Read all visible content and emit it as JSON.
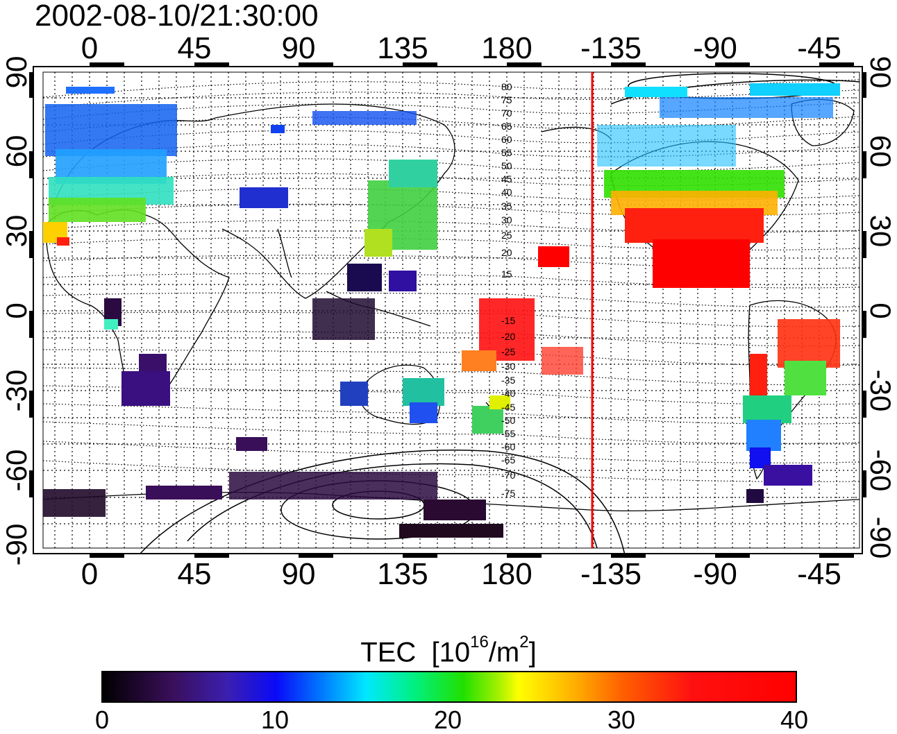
{
  "timestamp": "2002-08-10/21:30:00",
  "longitude_labels": [
    "0",
    "45",
    "90",
    "135",
    "180",
    "-135",
    "-90",
    "-45"
  ],
  "latitude_labels": [
    "90",
    "60",
    "30",
    "0",
    "-30",
    "-60",
    "-90"
  ],
  "contour_labels": [
    "80",
    "75",
    "70",
    "65",
    "60",
    "55",
    "50",
    "45",
    "40",
    "35",
    "30",
    "25",
    "20",
    "15",
    "-15",
    "-20",
    "-25",
    "-30",
    "-35",
    "-40",
    "-45",
    "-50",
    "-55",
    "-60",
    "-65",
    "-70",
    "-75"
  ],
  "colorbar": {
    "title": "TEC",
    "unit_base": "[10",
    "unit_exp": "16",
    "unit_mid": "/m",
    "unit_exp2": "2",
    "unit_end": "]",
    "ticks": [
      "0",
      "10",
      "20",
      "30",
      "40"
    ],
    "range": [
      0,
      40
    ]
  },
  "colors": {
    "terminator_line": "#ff0000",
    "colormap": [
      "#000000",
      "#3a0f5a",
      "#0a0af8",
      "#00e8ff",
      "#20e000",
      "#ffff00",
      "#ff6000",
      "#ff0000"
    ]
  }
}
